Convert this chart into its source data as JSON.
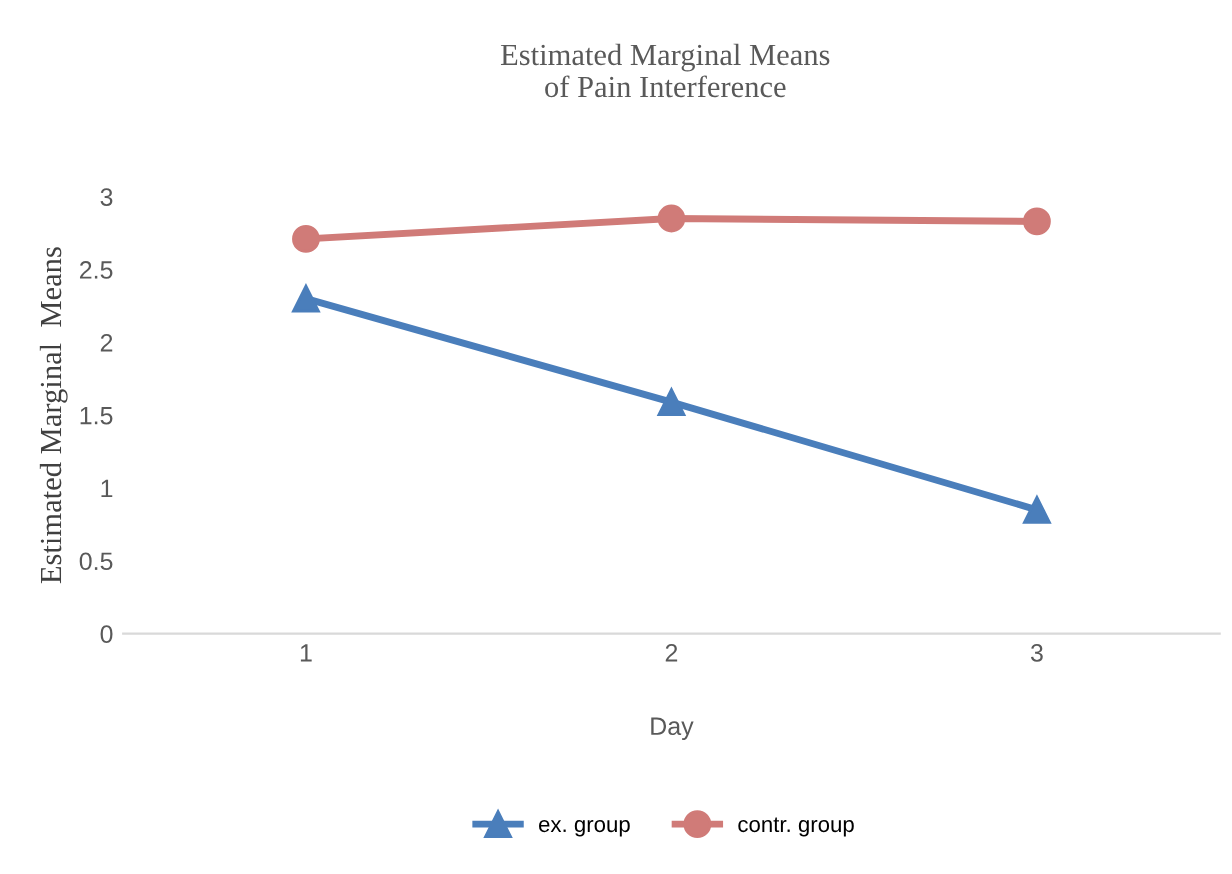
{
  "chart_data": {
    "type": "line",
    "title": "Estimated Marginal Means\nof Pain Interference",
    "xlabel": "Day",
    "ylabel": "Estimated Marginal  Means",
    "categories": [
      "1",
      "2",
      "3"
    ],
    "series": [
      {
        "name": "ex. group",
        "color": "#4a7ebb",
        "values": [
          2.3,
          1.59,
          0.85
        ],
        "marker": "triangle"
      },
      {
        "name": "contr. group",
        "color": "#d07b78",
        "values": [
          2.71,
          2.85,
          2.83
        ],
        "marker": "circle"
      }
    ],
    "ylim": [
      0,
      3
    ],
    "yticks": [
      0,
      0.5,
      1,
      1.5,
      2,
      2.5,
      3
    ],
    "grid": false,
    "legend": "bottom"
  }
}
